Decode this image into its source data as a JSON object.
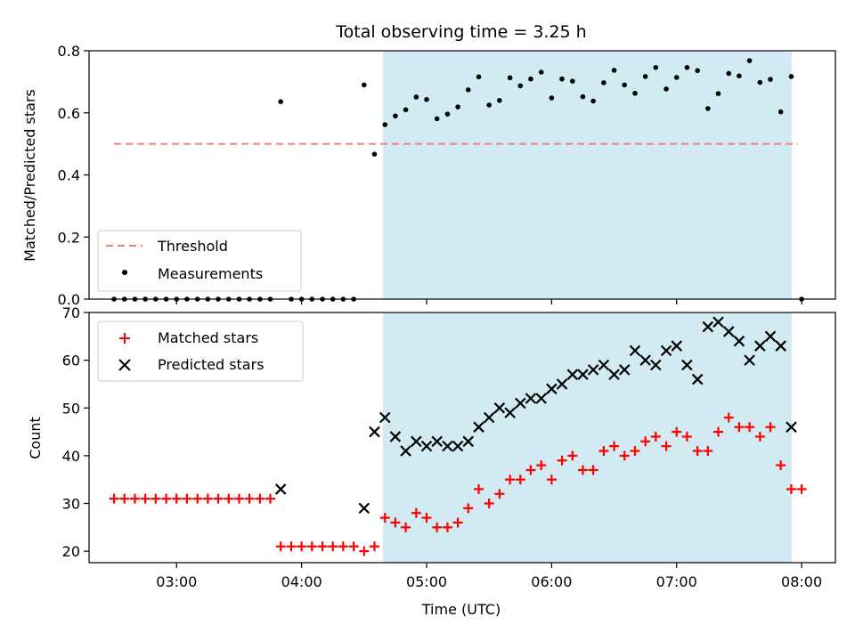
{
  "title": "Total observing time = 3.25 h",
  "xlabel": "Time (UTC)",
  "x_ticks": [
    "03:00",
    "04:00",
    "05:00",
    "06:00",
    "07:00",
    "08:00"
  ],
  "top_panel": {
    "ylabel": "Matched/Predicted stars",
    "y_ticks": [
      "0.0",
      "0.2",
      "0.4",
      "0.6",
      "0.8"
    ],
    "legend": {
      "threshold": "Threshold",
      "measurements": "Measurements"
    }
  },
  "bottom_panel": {
    "ylabel": "Count",
    "y_ticks": [
      "20",
      "30",
      "40",
      "50",
      "60",
      "70"
    ],
    "legend": {
      "matched": "Matched stars",
      "predicted": "Predicted stars"
    }
  },
  "colors": {
    "threshold": "#f08080",
    "measurements": "#000000",
    "matched": "#ff0000",
    "predicted": "#000000",
    "observing_span": "#add8e6"
  },
  "chart_data": [
    {
      "type": "scatter",
      "ylim": [
        0,
        0.8
      ],
      "xlim_hours": [
        2.3,
        8.27
      ],
      "observing_span_hours": [
        4.65,
        7.92
      ],
      "threshold": {
        "value": 0.5,
        "x_start_hours": 2.5,
        "x_end_hours": 7.97
      },
      "series": [
        {
          "name": "Measurements",
          "x_hours": [
            2.5,
            2.583,
            2.667,
            2.75,
            2.833,
            2.917,
            3.0,
            3.083,
            3.167,
            3.25,
            3.333,
            3.417,
            3.5,
            3.583,
            3.667,
            3.75,
            3.833,
            3.917,
            4.0,
            4.083,
            4.167,
            4.25,
            4.333,
            4.417,
            4.5,
            4.583,
            4.667,
            4.75,
            4.833,
            4.917,
            5.0,
            5.083,
            5.167,
            5.25,
            5.333,
            5.417,
            5.5,
            5.583,
            5.667,
            5.75,
            5.833,
            5.917,
            6.0,
            6.083,
            6.167,
            6.25,
            6.333,
            6.417,
            6.5,
            6.583,
            6.667,
            6.75,
            6.833,
            6.917,
            7.0,
            7.083,
            7.167,
            7.25,
            7.333,
            7.417,
            7.5,
            7.583,
            7.667,
            7.75,
            7.833,
            7.917,
            8.0
          ],
          "y": [
            0,
            0,
            0,
            0,
            0,
            0,
            0,
            0,
            0,
            0,
            0,
            0,
            0,
            0,
            0,
            0,
            0.636,
            0,
            0,
            0,
            0,
            0,
            0,
            0,
            0.69,
            0.467,
            0.562,
            0.59,
            0.61,
            0.651,
            0.643,
            0.581,
            0.596,
            0.619,
            0.674,
            0.716,
            0.625,
            0.64,
            0.713,
            0.687,
            0.709,
            0.731,
            0.648,
            0.709,
            0.702,
            0.652,
            0.638,
            0.697,
            0.737,
            0.69,
            0.663,
            0.717,
            0.746,
            0.677,
            0.714,
            0.746,
            0.736,
            0.614,
            0.662,
            0.727,
            0.719,
            0.768,
            0.698,
            0.708,
            0.603,
            0.717,
            0.0
          ]
        }
      ]
    },
    {
      "type": "scatter",
      "ylim": [
        17.6,
        70
      ],
      "xlim_hours": [
        2.3,
        8.27
      ],
      "observing_span_hours": [
        4.65,
        7.92
      ],
      "series": [
        {
          "name": "Matched stars",
          "x_hours": [
            2.5,
            2.583,
            2.667,
            2.75,
            2.833,
            2.917,
            3.0,
            3.083,
            3.167,
            3.25,
            3.333,
            3.417,
            3.5,
            3.583,
            3.667,
            3.75,
            3.833,
            3.917,
            4.0,
            4.083,
            4.167,
            4.25,
            4.333,
            4.417,
            4.5,
            4.583,
            4.667,
            4.75,
            4.833,
            4.917,
            5.0,
            5.083,
            5.167,
            5.25,
            5.333,
            5.417,
            5.5,
            5.583,
            5.667,
            5.75,
            5.833,
            5.917,
            6.0,
            6.083,
            6.167,
            6.25,
            6.333,
            6.417,
            6.5,
            6.583,
            6.667,
            6.75,
            6.833,
            6.917,
            7.0,
            7.083,
            7.167,
            7.25,
            7.333,
            7.417,
            7.5,
            7.583,
            7.667,
            7.75,
            7.833,
            7.917,
            8.0
          ],
          "y": [
            31,
            31,
            31,
            31,
            31,
            31,
            31,
            31,
            31,
            31,
            31,
            31,
            31,
            31,
            31,
            31,
            21,
            21,
            21,
            21,
            21,
            21,
            21,
            21,
            20,
            21,
            27,
            26,
            25,
            28,
            27,
            25,
            25,
            26,
            29,
            33,
            30,
            32,
            35,
            35,
            37,
            38,
            35,
            39,
            40,
            37,
            37,
            41,
            42,
            40,
            41,
            43,
            44,
            42,
            45,
            44,
            41,
            41,
            45,
            48,
            46,
            46,
            44,
            46,
            38,
            33,
            33
          ]
        },
        {
          "name": "Predicted stars",
          "x_hours": [
            3.833,
            4.5,
            4.583,
            4.667,
            4.75,
            4.833,
            4.917,
            5.0,
            5.083,
            5.167,
            5.25,
            5.333,
            5.417,
            5.5,
            5.583,
            5.667,
            5.75,
            5.833,
            5.917,
            6.0,
            6.083,
            6.167,
            6.25,
            6.333,
            6.417,
            6.5,
            6.583,
            6.667,
            6.75,
            6.833,
            6.917,
            7.0,
            7.083,
            7.167,
            7.25,
            7.333,
            7.417,
            7.5,
            7.583,
            7.667,
            7.75,
            7.833,
            7.917
          ],
          "y": [
            33,
            29,
            45,
            48,
            44,
            41,
            43,
            42,
            43,
            42,
            42,
            43,
            46,
            48,
            50,
            49,
            51,
            52,
            52,
            54,
            55,
            57,
            57,
            58,
            59,
            57,
            58,
            62,
            60,
            59,
            62,
            63,
            59,
            56,
            67,
            68,
            66,
            64,
            60,
            63,
            65,
            63,
            46
          ]
        }
      ]
    }
  ]
}
